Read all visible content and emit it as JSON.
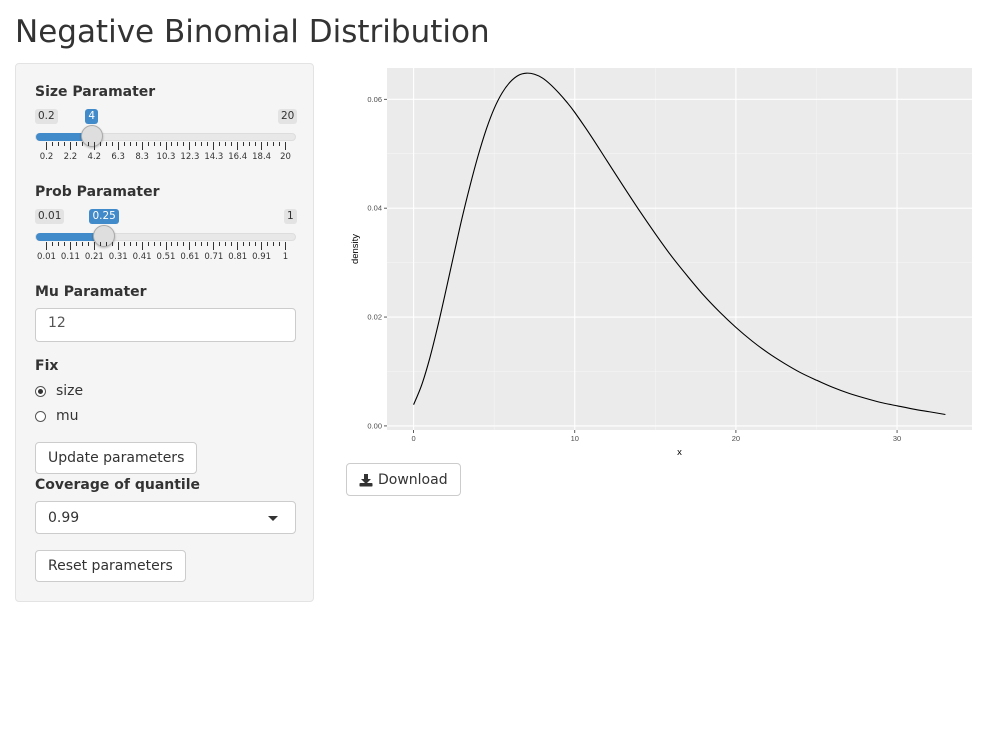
{
  "app": {
    "title": "Negative Binomial Distribution"
  },
  "sidebar": {
    "size_slider": {
      "label": "Size Paramater",
      "min_label": "0.2",
      "max_label": "20",
      "value_label": "4",
      "min": 0.2,
      "max": 20,
      "value": 4,
      "tick_labels": [
        "0.2",
        "2.2",
        "4.2",
        "6.3",
        "8.3",
        "10.3",
        "12.3",
        "14.3",
        "16.4",
        "18.4",
        "20"
      ]
    },
    "prob_slider": {
      "label": "Prob Paramater",
      "min_label": "0.01",
      "max_label": "1",
      "value_label": "0.25",
      "min": 0.01,
      "max": 1,
      "value": 0.25,
      "tick_labels": [
        "0.01",
        "0.11",
        "0.21",
        "0.31",
        "0.41",
        "0.51",
        "0.61",
        "0.71",
        "0.81",
        "0.91",
        "1"
      ]
    },
    "mu": {
      "label": "Mu Paramater",
      "value": "12"
    },
    "fix": {
      "label": "Fix",
      "options": [
        {
          "label": "size",
          "checked": true
        },
        {
          "label": "mu",
          "checked": false
        }
      ]
    },
    "update_button": "Update parameters",
    "coverage": {
      "label": "Coverage of quantile",
      "selected": "0.99"
    },
    "reset_button": "Reset parameters"
  },
  "main": {
    "download_button": "Download"
  },
  "chart_data": {
    "type": "line",
    "xlabel": "x",
    "ylabel": "density",
    "xlim": [
      -1.65,
      34.65
    ],
    "ylim": [
      -0.00075,
      0.06575
    ],
    "x_ticks": [
      0,
      10,
      20,
      30
    ],
    "y_ticks": [
      0.0,
      0.02,
      0.04,
      0.06
    ],
    "x_tick_labels": [
      "0",
      "10",
      "20",
      "30"
    ],
    "y_tick_labels": [
      "0.00",
      "0.02",
      "0.04",
      "0.06"
    ],
    "grid": true,
    "background": "#EBEBEB",
    "line_color": "#000000",
    "series": [
      {
        "x": [
          0,
          0.5,
          1,
          1.5,
          2,
          2.5,
          3,
          3.5,
          4,
          4.5,
          5,
          5.5,
          6,
          6.5,
          7,
          7.5,
          8,
          8.5,
          9,
          9.5,
          10,
          11,
          12,
          13,
          14,
          15,
          16,
          17,
          18,
          19,
          20,
          21,
          22,
          23,
          24,
          25,
          26,
          27,
          28,
          29,
          30,
          31,
          32,
          33
        ],
        "values": [
          0.0039,
          0.0075,
          0.0124,
          0.0183,
          0.0248,
          0.0315,
          0.0381,
          0.0441,
          0.0496,
          0.0544,
          0.0583,
          0.0612,
          0.0632,
          0.0644,
          0.0648,
          0.0646,
          0.0639,
          0.0627,
          0.0612,
          0.0595,
          0.0576,
          0.0533,
          0.0487,
          0.0441,
          0.0396,
          0.0353,
          0.0312,
          0.0275,
          0.024,
          0.0209,
          0.0181,
          0.0156,
          0.0134,
          0.0115,
          0.0098,
          0.0084,
          0.0071,
          0.006,
          0.0051,
          0.0043,
          0.0037,
          0.0031,
          0.0026,
          0.0021
        ]
      }
    ]
  }
}
